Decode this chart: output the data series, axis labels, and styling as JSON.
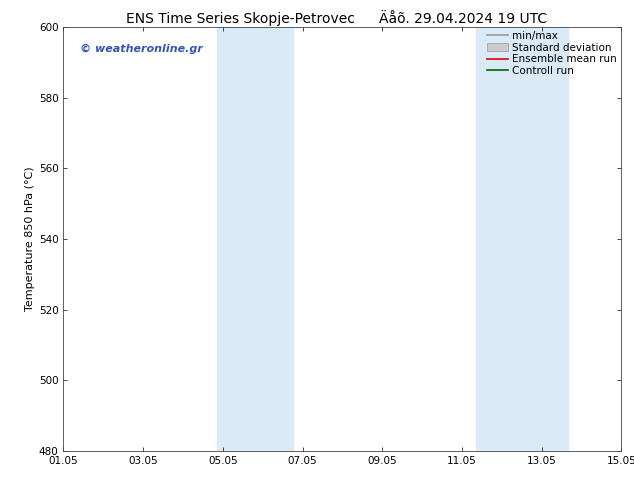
{
  "title": "ENS Time Series Skopje-Petrovec",
  "subtitle": "Äåõ. 29.04.2024 19 UTC",
  "ylabel": "Temperature 850 hPa (°C)",
  "xlabel_ticks": [
    "01.05",
    "03.05",
    "05.05",
    "07.05",
    "09.05",
    "11.05",
    "13.05",
    "15.05"
  ],
  "x_positions": [
    0,
    2,
    4,
    6,
    8,
    10,
    12,
    14
  ],
  "xlim": [
    0,
    14
  ],
  "ylim": [
    480,
    600
  ],
  "yticks": [
    480,
    500,
    520,
    540,
    560,
    580,
    600
  ],
  "background_color": "#ffffff",
  "plot_bg_color": "#ffffff",
  "shaded_bands": [
    {
      "xmin": 4.0,
      "xmax": 5.0,
      "color": "#ddeeff"
    },
    {
      "xmin": 5.0,
      "xmax": 5.5,
      "color": "#ddeeff"
    },
    {
      "xmin": 10.5,
      "xmax": 12.5,
      "color": "#ddeeff"
    }
  ],
  "shaded_bands2": [
    {
      "xmin": 3.85,
      "xmax": 5.75,
      "color": "#daeaf7"
    },
    {
      "xmin": 10.35,
      "xmax": 12.65,
      "color": "#daeaf7"
    }
  ],
  "watermark_text": "© weatheronline.gr",
  "watermark_color": "#3355bb",
  "legend_items": [
    {
      "label": "min/max",
      "color": "#999999",
      "style": "line",
      "lw": 1.2
    },
    {
      "label": "Standard deviation",
      "color": "#bbbbbb",
      "style": "band"
    },
    {
      "label": "Ensemble mean run",
      "color": "#dd0000",
      "style": "line",
      "lw": 1.2
    },
    {
      "label": "Controll run",
      "color": "#006600",
      "style": "line",
      "lw": 1.2
    }
  ],
  "title_fontsize": 10,
  "subtitle_fontsize": 10,
  "tick_label_fontsize": 7.5,
  "ylabel_fontsize": 8,
  "legend_fontsize": 7.5,
  "watermark_fontsize": 8
}
